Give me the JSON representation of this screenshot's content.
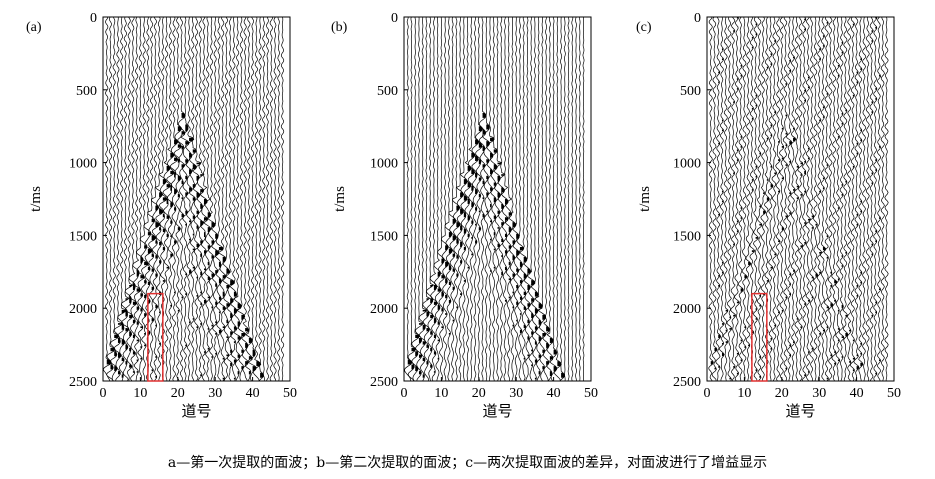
{
  "figure": {
    "caption": "a—第一次提取的面波；b—第二次提取的面波；c—两次提取面波的差异，对面波进行了增益显示"
  },
  "chart_data": [
    {
      "type": "heatmap",
      "panel_label": "(a)",
      "xlabel": "道号",
      "ylabel": "t/ms",
      "xlim": [
        0,
        50
      ],
      "ylim": [
        0,
        2500
      ],
      "y_inverted": true,
      "xticks": [
        "0",
        "10",
        "20",
        "30",
        "40",
        "50"
      ],
      "yticks": [
        "0",
        "500",
        "1000",
        "1500",
        "2000",
        "2500"
      ],
      "traces": 48,
      "wave_apex": {
        "trace": 21,
        "time_ms": 650
      },
      "annotation_box": {
        "trace_range": [
          12,
          16
        ],
        "time_range_ms": [
          1900,
          2500
        ],
        "color": "#e03030"
      }
    },
    {
      "type": "heatmap",
      "panel_label": "(b)",
      "xlabel": "道号",
      "ylabel": "t/ms",
      "xlim": [
        0,
        50
      ],
      "ylim": [
        0,
        2500
      ],
      "y_inverted": true,
      "xticks": [
        "0",
        "10",
        "20",
        "30",
        "40",
        "50"
      ],
      "yticks": [
        "0",
        "500",
        "1000",
        "1500",
        "2000",
        "2500"
      ],
      "traces": 48,
      "wave_apex": {
        "trace": 21,
        "time_ms": 650
      }
    },
    {
      "type": "heatmap",
      "panel_label": "(c)",
      "xlabel": "道号",
      "ylabel": "t/ms",
      "xlim": [
        0,
        50
      ],
      "ylim": [
        0,
        2500
      ],
      "y_inverted": true,
      "xticks": [
        "0",
        "10",
        "20",
        "30",
        "40",
        "50"
      ],
      "yticks": [
        "0",
        "500",
        "1000",
        "1500",
        "2000",
        "2500"
      ],
      "traces": 48,
      "wave_apex": {
        "trace": 21,
        "time_ms": 650
      },
      "annotation_box": {
        "trace_range": [
          12,
          16
        ],
        "time_range_ms": [
          1900,
          2500
        ],
        "color": "#e03030"
      }
    }
  ]
}
